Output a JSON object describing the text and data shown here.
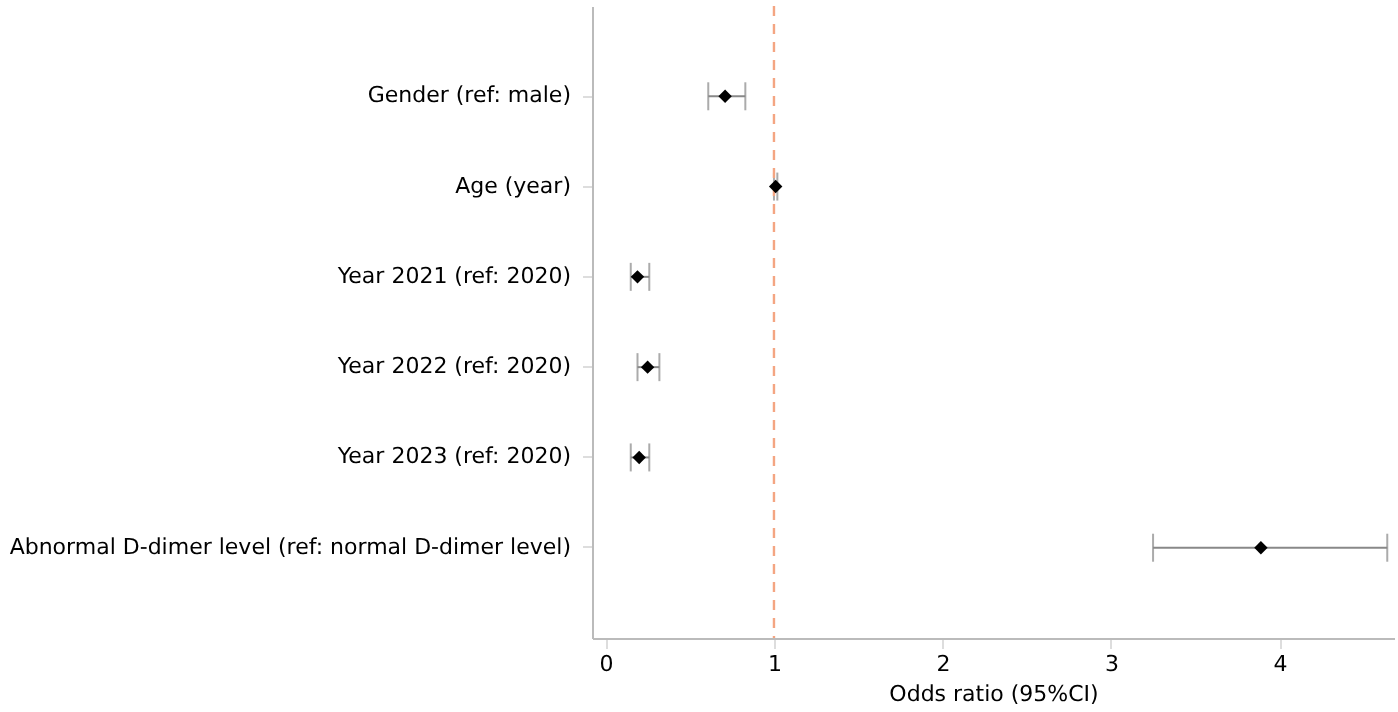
{
  "chart_data": {
    "type": "scatter",
    "orientation": "horizontal",
    "xlabel": "Odds ratio (95%CI)",
    "categories": [
      "Gender (ref: male)",
      "Age (year)",
      "Year 2021 (ref: 2020)",
      "Year 2022 (ref: 2020)",
      "Year 2023 (ref: 2020)",
      "Abnormal D-dimer level (ref: normal D-dimer level)"
    ],
    "color": "#000000",
    "values": [
      0.71,
      1.01,
      0.19,
      0.25,
      0.2,
      3.89
    ],
    "errors": [
      [
        0.61,
        0.83
      ],
      [
        1.0,
        1.02
      ],
      [
        0.15,
        0.26
      ],
      [
        0.19,
        0.32
      ],
      [
        0.15,
        0.26
      ],
      [
        3.25,
        4.64
      ]
    ],
    "xlim": [
      -0.08,
      4.68
    ],
    "xticks": [
      0,
      1,
      2,
      3,
      4
    ],
    "marker": "diamond",
    "grid": false,
    "ref_lines": [
      {
        "axis": "x",
        "value": 1,
        "color": "#f4a582",
        "line_style": "dashed"
      }
    ]
  }
}
